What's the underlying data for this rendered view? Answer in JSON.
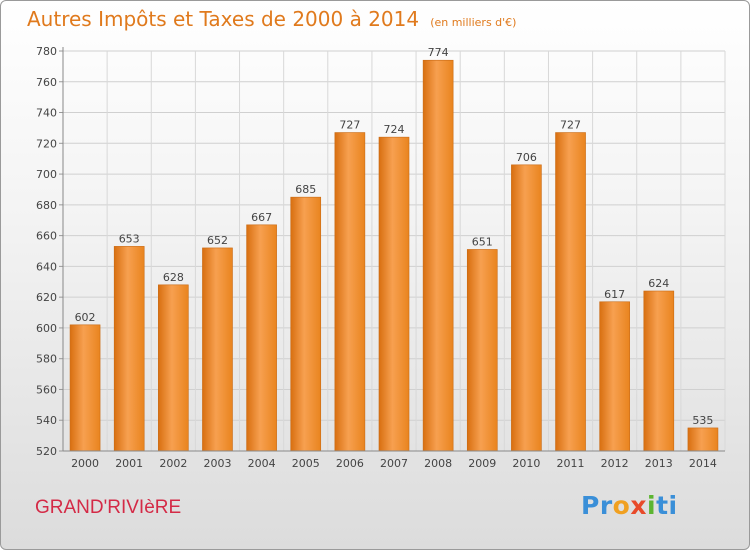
{
  "title": "Autres Impôts et Taxes de 2000 à 2014",
  "subtitle": "(en milliers d'€)",
  "footer": {
    "city": "GRAND'RIVIèRE",
    "logo": {
      "p1": "Pr",
      "p2": "o",
      "p3": "x",
      "p4": "i",
      "p5": "ti"
    }
  },
  "colors": {
    "bar": "#f08a24",
    "bar_light": "#f7a95a",
    "title": "#e07a1d",
    "city": "#d42a46"
  },
  "chart_data": {
    "type": "bar",
    "categories": [
      "2000",
      "2001",
      "2002",
      "2003",
      "2004",
      "2005",
      "2006",
      "2007",
      "2008",
      "2009",
      "2010",
      "2011",
      "2012",
      "2013",
      "2014"
    ],
    "values": [
      602,
      653,
      628,
      652,
      667,
      685,
      727,
      724,
      774,
      651,
      706,
      727,
      617,
      624,
      535
    ],
    "ylim": [
      520,
      780
    ],
    "yticks": [
      520,
      540,
      560,
      580,
      600,
      620,
      640,
      660,
      680,
      700,
      720,
      740,
      760,
      780
    ],
    "grid": true,
    "xlabel": "",
    "ylabel": ""
  }
}
